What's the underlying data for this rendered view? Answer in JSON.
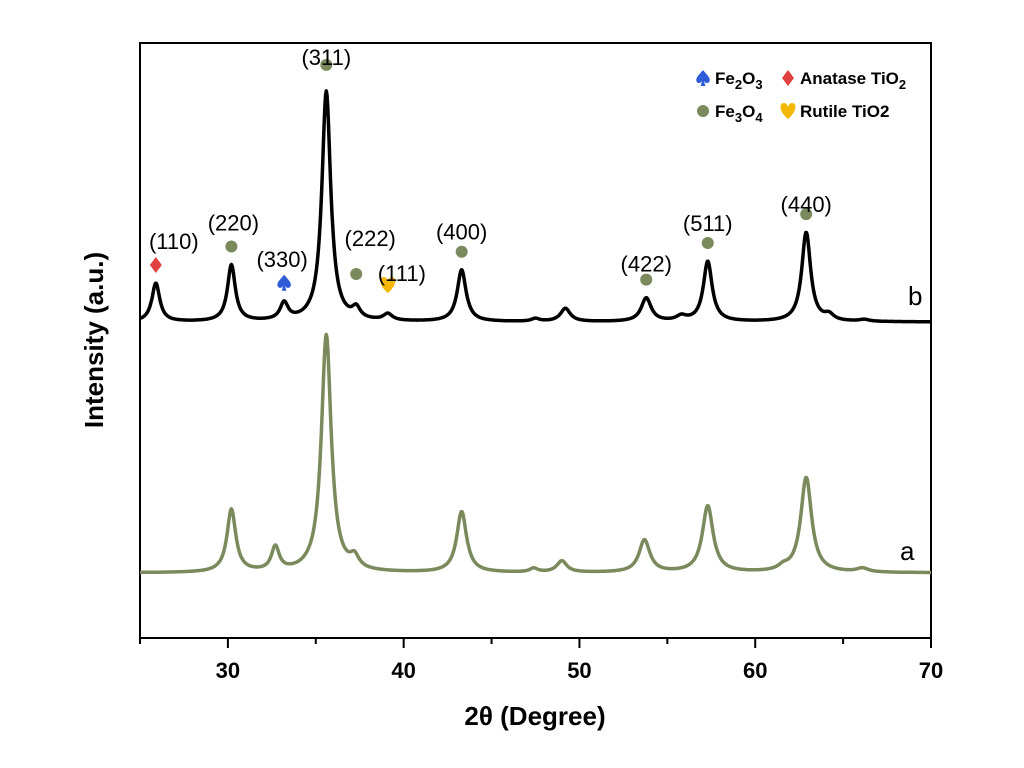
{
  "chart_data": {
    "type": "line",
    "xlabel": "2θ (Degree)",
    "ylabel": "Intensity (a.u.)",
    "xlim": [
      25,
      70
    ],
    "x_ticks": [
      30,
      40,
      50,
      60,
      70
    ],
    "y_ticks_shown": false,
    "grid": false,
    "legend_position": "top-right",
    "legend": [
      {
        "symbol": "spade",
        "label_main": "Fe",
        "label_sub1": "2",
        "label_mid": "O",
        "label_sub2": "3",
        "color": "#2f5bd6"
      },
      {
        "symbol": "diamond",
        "label_main": "Anatase TiO",
        "label_sub1": "2",
        "color": "#e04040"
      },
      {
        "symbol": "circle",
        "label_main": "Fe",
        "label_sub1": "3",
        "label_mid": "O",
        "label_sub2": "4",
        "color": "#7b8a5c"
      },
      {
        "symbol": "heart",
        "label_main": "Rutile TiO2",
        "color": "#f5b800"
      }
    ],
    "series": [
      {
        "name": "a",
        "color": "#7b8a5c",
        "baseline": 0.18,
        "peaks": [
          {
            "x": 30.2,
            "h": 0.66,
            "w": 0.45
          },
          {
            "x": 32.7,
            "h": 0.25,
            "w": 0.4
          },
          {
            "x": 35.6,
            "h": 2.5,
            "w": 0.5
          },
          {
            "x": 37.2,
            "h": 0.12,
            "w": 0.45
          },
          {
            "x": 43.3,
            "h": 0.64,
            "w": 0.5
          },
          {
            "x": 47.4,
            "h": 0.04,
            "w": 0.4
          },
          {
            "x": 49.0,
            "h": 0.12,
            "w": 0.5
          },
          {
            "x": 53.7,
            "h": 0.34,
            "w": 0.55
          },
          {
            "x": 57.3,
            "h": 0.7,
            "w": 0.55
          },
          {
            "x": 61.6,
            "h": 0.04,
            "w": 0.5
          },
          {
            "x": 62.9,
            "h": 1.0,
            "w": 0.55
          },
          {
            "x": 66.1,
            "h": 0.04,
            "w": 0.6
          }
        ]
      },
      {
        "name": "b",
        "color": "#000000",
        "baseline": 0.0,
        "peaks": [
          {
            "x": 25.9,
            "h": 0.41,
            "w": 0.4
          },
          {
            "x": 30.2,
            "h": 0.6,
            "w": 0.4
          },
          {
            "x": 33.2,
            "h": 0.18,
            "w": 0.4
          },
          {
            "x": 35.6,
            "h": 2.45,
            "w": 0.45
          },
          {
            "x": 37.3,
            "h": 0.11,
            "w": 0.4
          },
          {
            "x": 39.1,
            "h": 0.07,
            "w": 0.45
          },
          {
            "x": 43.3,
            "h": 0.55,
            "w": 0.45
          },
          {
            "x": 47.5,
            "h": 0.03,
            "w": 0.4
          },
          {
            "x": 49.2,
            "h": 0.14,
            "w": 0.5
          },
          {
            "x": 53.8,
            "h": 0.25,
            "w": 0.5
          },
          {
            "x": 55.8,
            "h": 0.05,
            "w": 0.5
          },
          {
            "x": 57.3,
            "h": 0.64,
            "w": 0.45
          },
          {
            "x": 62.9,
            "h": 0.95,
            "w": 0.45
          },
          {
            "x": 64.2,
            "h": 0.06,
            "w": 0.45
          },
          {
            "x": 66.2,
            "h": 0.02,
            "w": 0.5
          }
        ]
      }
    ],
    "peak_annotations": [
      {
        "x": 25.9,
        "hkl": "(110)",
        "phase": "diamond"
      },
      {
        "x": 30.2,
        "hkl": "(220)",
        "phase": "circle"
      },
      {
        "x": 33.2,
        "hkl": "(330)",
        "phase": "spade"
      },
      {
        "x": 35.6,
        "hkl": "(311)",
        "phase": "circle"
      },
      {
        "x": 37.3,
        "hkl": "(222)",
        "phase": "circle"
      },
      {
        "x": 39.1,
        "hkl": "(111)",
        "phase": "heart"
      },
      {
        "x": 43.3,
        "hkl": "(400)",
        "phase": "circle"
      },
      {
        "x": 53.8,
        "hkl": "(422)",
        "phase": "circle"
      },
      {
        "x": 57.3,
        "hkl": "(511)",
        "phase": "circle"
      },
      {
        "x": 62.9,
        "hkl": "(440)",
        "phase": "circle"
      }
    ]
  }
}
